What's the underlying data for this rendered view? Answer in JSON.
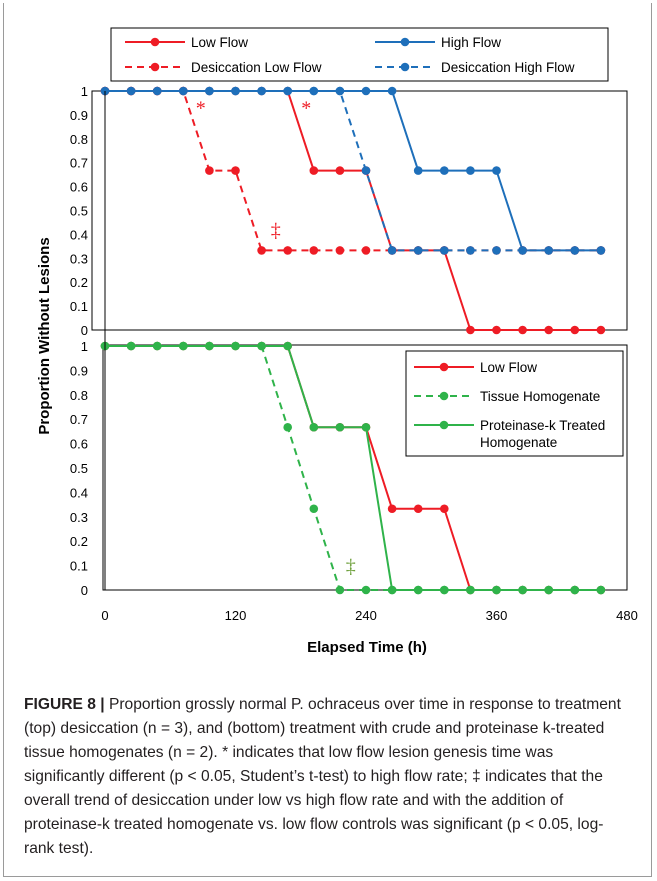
{
  "colors": {
    "low": "#ee1c25",
    "high": "#1e6fba",
    "homog": "#2fb34a",
    "dagger_bottom": "#6ea03c"
  },
  "axes": {
    "ylabel": "Proportion Without Lesions",
    "xlabel": "Elapsed Time (h)",
    "xticks": [
      "0",
      "120",
      "240",
      "360",
      "480"
    ],
    "xlim": [
      0,
      480
    ],
    "yticks": [
      "0",
      "0.1",
      "0.2",
      "0.3",
      "0.4",
      "0.5",
      "0.6",
      "0.7",
      "0.8",
      "0.9",
      "1"
    ],
    "ylim": [
      0,
      1
    ]
  },
  "chart_data": [
    {
      "type": "line",
      "panel": "top",
      "xlim": [
        0,
        480
      ],
      "ylim": [
        0,
        1
      ],
      "series": [
        {
          "name": "Low Flow",
          "color": "#ee1c25",
          "dashed": false,
          "x": [
            0,
            24,
            48,
            72,
            96,
            120,
            144,
            168,
            192,
            216,
            240,
            264,
            288,
            312,
            336,
            360,
            384,
            408,
            432,
            456
          ],
          "y": [
            1,
            1,
            1,
            1,
            1,
            1,
            1,
            1,
            0.667,
            0.667,
            0.667,
            0.333,
            0.333,
            0.333,
            0,
            0,
            0,
            0,
            0,
            0
          ]
        },
        {
          "name": "High Flow",
          "color": "#1e6fba",
          "dashed": false,
          "x": [
            0,
            24,
            48,
            72,
            96,
            120,
            144,
            168,
            192,
            216,
            240,
            264,
            288,
            312,
            336,
            360,
            384,
            408,
            432,
            456
          ],
          "y": [
            1,
            1,
            1,
            1,
            1,
            1,
            1,
            1,
            1,
            1,
            1,
            1,
            0.667,
            0.667,
            0.667,
            0.667,
            0.333,
            0.333,
            0.333,
            0.333
          ]
        },
        {
          "name": "Desiccation Low Flow",
          "color": "#ee1c25",
          "dashed": true,
          "x": [
            0,
            24,
            48,
            72,
            96,
            120,
            144,
            168,
            192,
            216,
            240,
            264,
            288,
            312,
            336,
            360,
            384,
            408,
            432,
            456
          ],
          "y": [
            1,
            1,
            1,
            1,
            0.667,
            0.667,
            0.333,
            0.333,
            0.333,
            0.333,
            0.333,
            0.333,
            0.333,
            0.333,
            0.333,
            0.333,
            0.333,
            0.333,
            0.333,
            0.333
          ]
        },
        {
          "name": "Desiccation High Flow",
          "color": "#1e6fba",
          "dashed": true,
          "x": [
            0,
            24,
            48,
            72,
            96,
            120,
            144,
            168,
            192,
            216,
            240,
            264,
            288,
            312,
            336,
            360,
            384,
            408,
            432,
            456
          ],
          "y": [
            1,
            1,
            1,
            1,
            1,
            1,
            1,
            1,
            1,
            1,
            0.667,
            0.333,
            0.333,
            0.333,
            0.333,
            0.333,
            0.333,
            0.333,
            0.333,
            0.333
          ]
        }
      ],
      "annotations": [
        {
          "text": "*",
          "x": 88,
          "y": 0.93,
          "color": "#ee1c25"
        },
        {
          "text": "*",
          "x": 185,
          "y": 0.93,
          "color": "#ee1c25"
        },
        {
          "text": "‡",
          "x": 157,
          "y": 0.42,
          "color": "#ee1c25"
        }
      ],
      "legend": "top"
    },
    {
      "type": "line",
      "panel": "bottom",
      "xlim": [
        0,
        480
      ],
      "ylim": [
        0,
        1
      ],
      "series": [
        {
          "name": "Low Flow",
          "color": "#ee1c25",
          "dashed": false,
          "x": [
            0,
            24,
            48,
            72,
            96,
            120,
            144,
            168,
            192,
            216,
            240,
            264,
            288,
            312,
            336,
            360,
            384,
            408,
            432,
            456
          ],
          "y": [
            1,
            1,
            1,
            1,
            1,
            1,
            1,
            1,
            0.667,
            0.667,
            0.667,
            0.333,
            0.333,
            0.333,
            0,
            0,
            0,
            0,
            0,
            0
          ]
        },
        {
          "name": "Tissue Homogenate",
          "color": "#2fb34a",
          "dashed": true,
          "x": [
            0,
            24,
            48,
            72,
            96,
            120,
            144,
            168,
            192,
            216,
            240,
            264,
            288,
            312,
            336,
            360,
            384,
            408,
            432,
            456
          ],
          "y": [
            1,
            1,
            1,
            1,
            1,
            1,
            1,
            0.667,
            0.333,
            0,
            0,
            0,
            0,
            0,
            0,
            0,
            0,
            0,
            0,
            0
          ]
        },
        {
          "name": "Proteinase-k Treated Homogenate",
          "color": "#2fb34a",
          "dashed": false,
          "x": [
            0,
            24,
            48,
            72,
            96,
            120,
            144,
            168,
            192,
            216,
            240,
            264,
            288,
            312,
            336,
            360,
            384,
            408,
            432,
            456
          ],
          "y": [
            1,
            1,
            1,
            1,
            1,
            1,
            1,
            1,
            0.667,
            0.667,
            0.667,
            0,
            0,
            0,
            0,
            0,
            0,
            0,
            0,
            0
          ]
        }
      ],
      "annotations": [
        {
          "text": "‡",
          "x": 226,
          "y": 0.1,
          "color": "#6ea03c"
        }
      ],
      "legend": "top-right"
    }
  ],
  "caption": {
    "label": "FIGURE 8 |",
    "text": " Proportion grossly normal P. ochraceus over time in response to treatment (top) desiccation (n = 3), and (bottom) treatment with crude and proteinase k-treated tissue homogenates (n = 2). * indicates that low flow lesion genesis time was significantly different (p < 0.05, Student’s t-test) to high flow rate; ‡ indicates that the overall trend of desiccation under low vs high flow rate and with the addition of proteinase-k treated homogenate vs. low flow controls was significant (p < 0.05, log-rank test)."
  }
}
